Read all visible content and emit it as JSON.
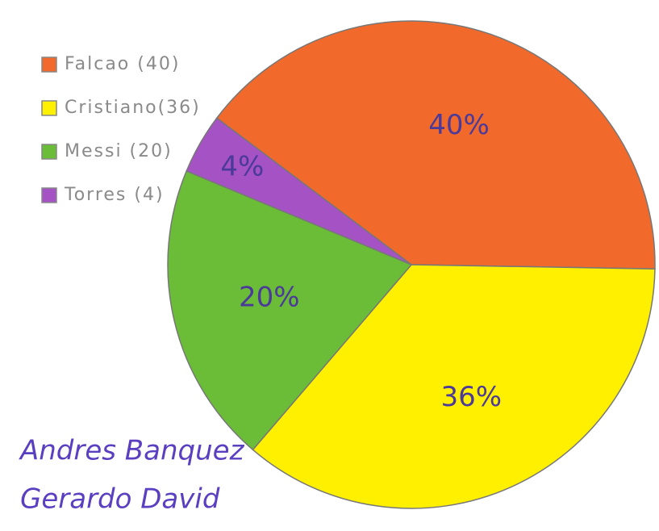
{
  "chart_data": {
    "type": "pie",
    "categories": [
      "Falcao (40)",
      "Cristiano(36)",
      "Messi (20)",
      "Torres (4)"
    ],
    "values": [
      40,
      36,
      20,
      4
    ],
    "value_labels": [
      "40%",
      "36%",
      "20%",
      "4%"
    ],
    "colors": [
      "#f26a2b",
      "#fff000",
      "#6bbd38",
      "#a552c4"
    ],
    "legend": "top-left",
    "annotations": [
      "Andres Banquez",
      "Gerardo David"
    ]
  }
}
